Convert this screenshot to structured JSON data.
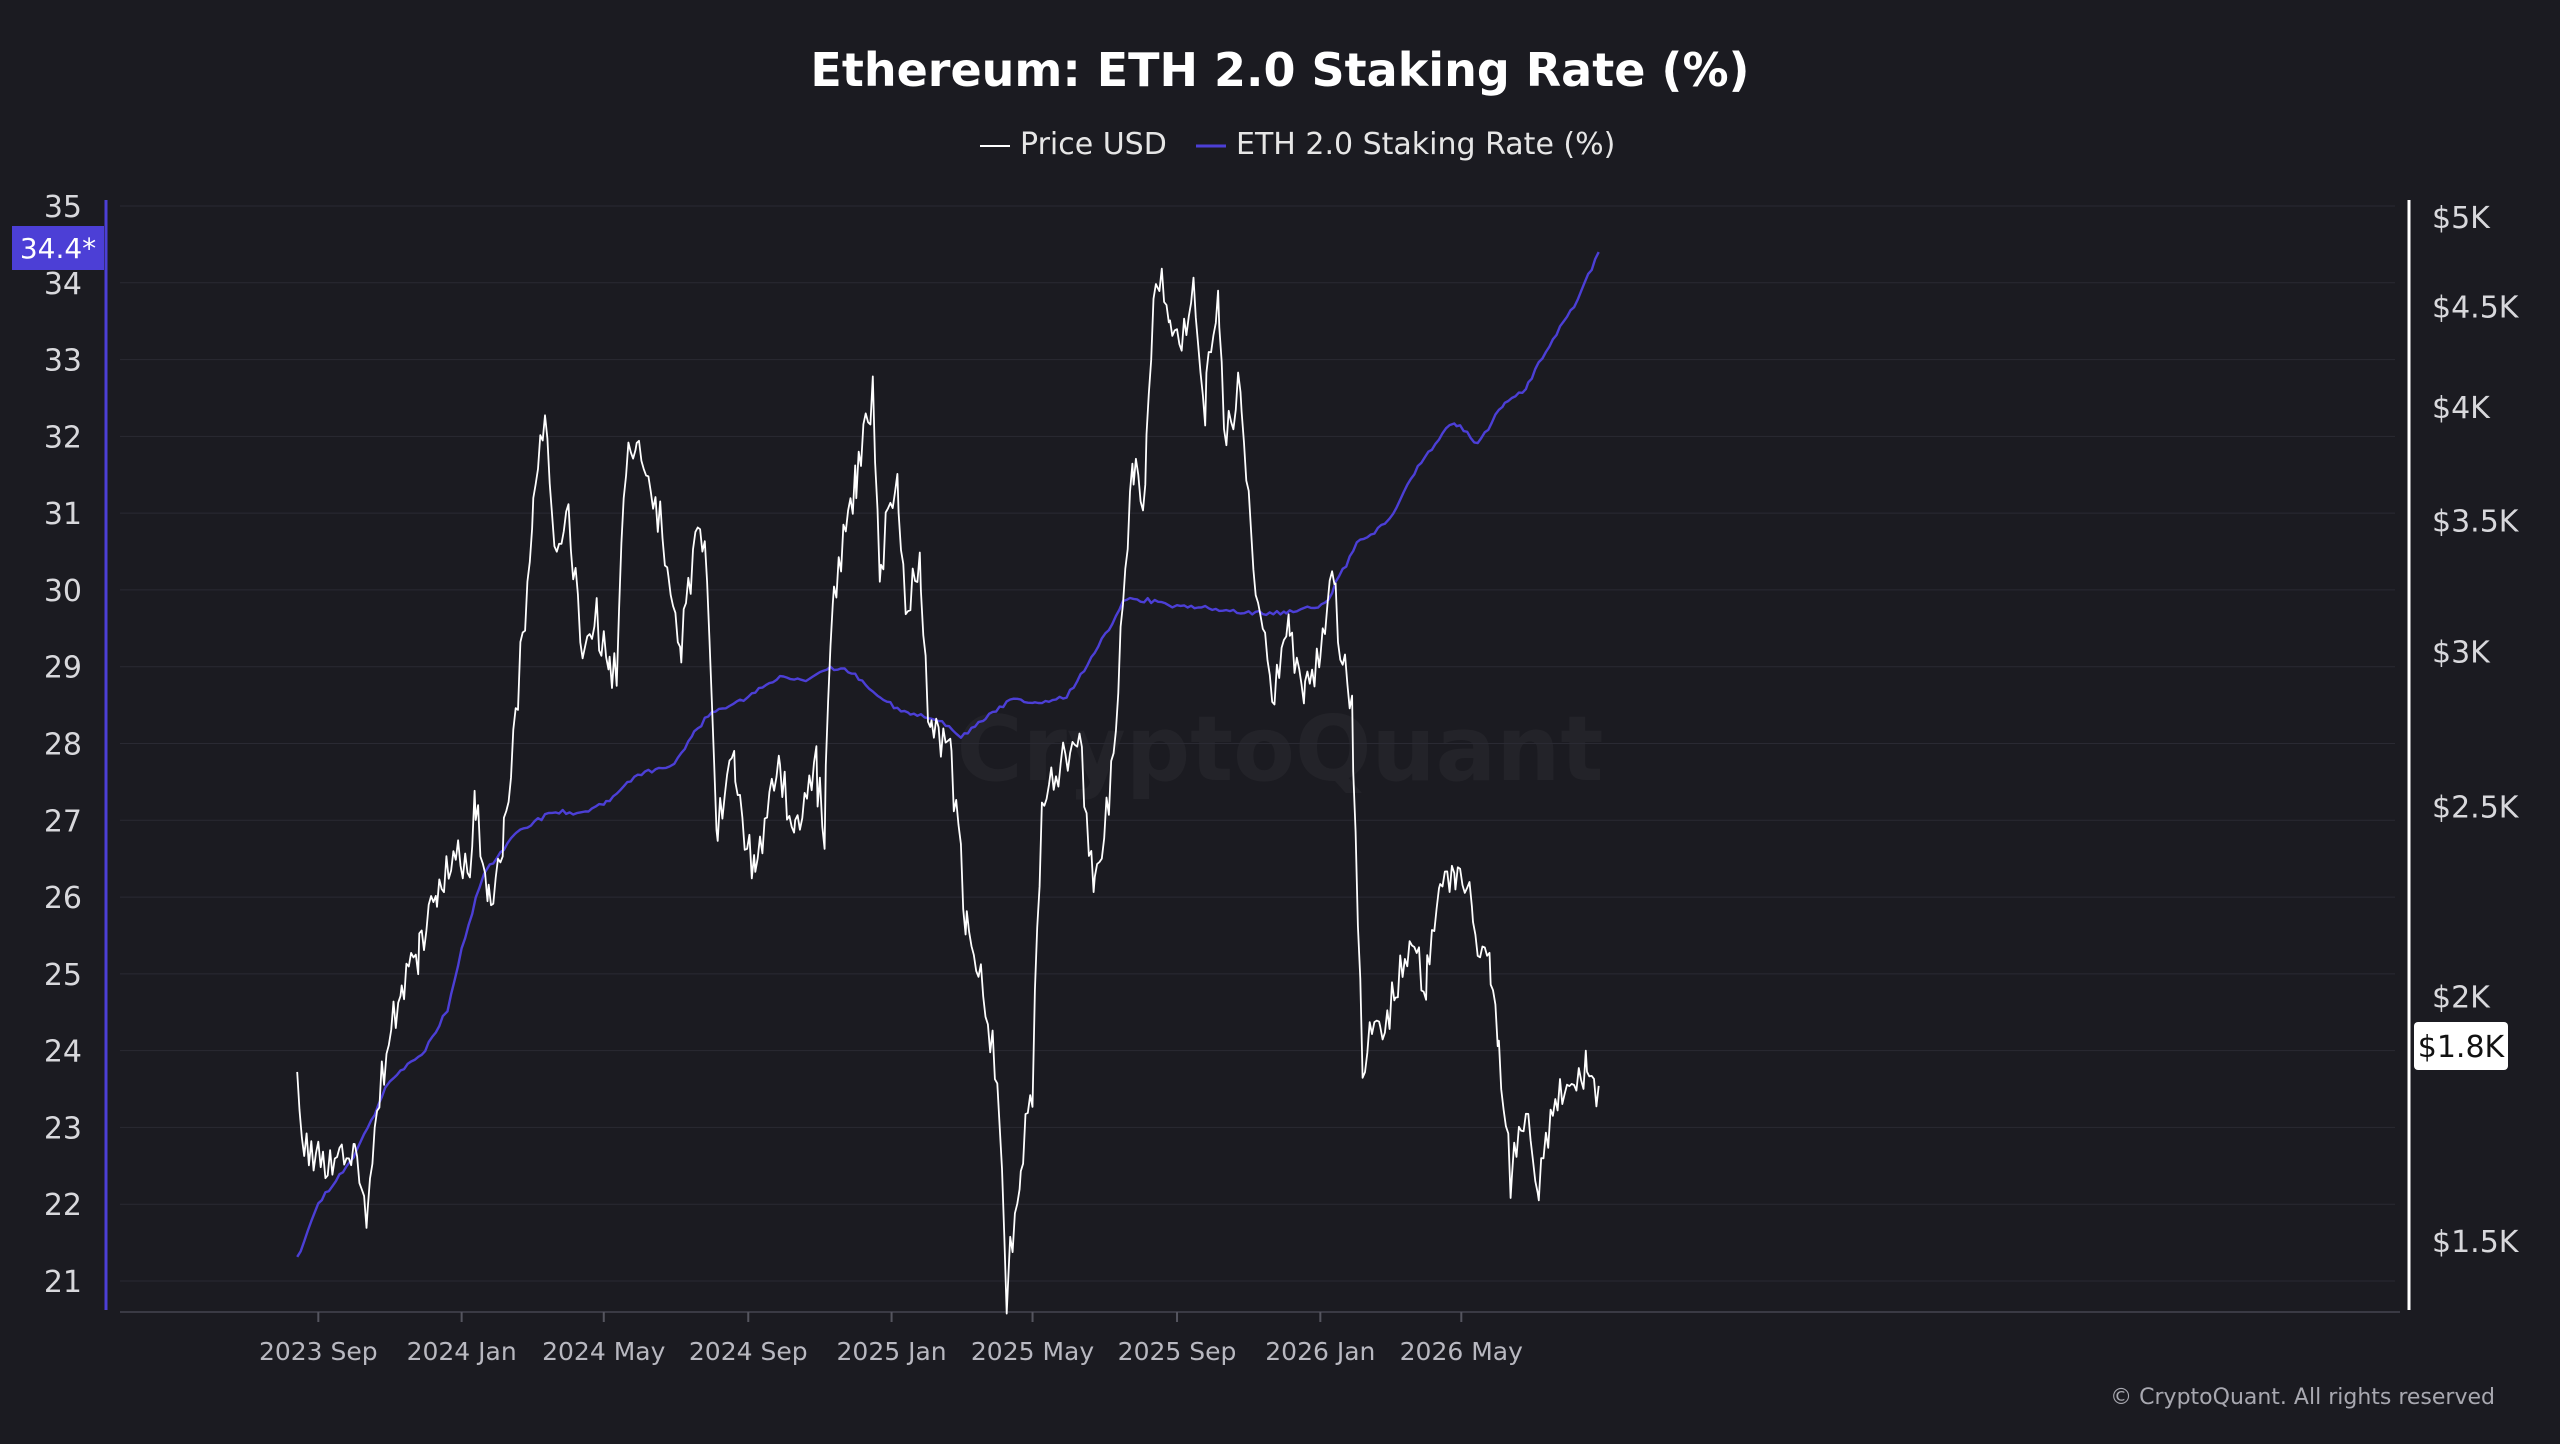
{
  "chart_data": {
    "type": "line",
    "title": "Ethereum: ETH 2.0 Staking Rate (%)",
    "legend": {
      "position": "top-center",
      "entries": [
        {
          "name": "Price USD",
          "color": "#ffffff"
        },
        {
          "name": "ETH 2.0 Staking Rate (%)",
          "color": "#4c3fd6"
        }
      ]
    },
    "watermark": "CryptoQuant",
    "copyright": "© CryptoQuant. All rights reserved",
    "x_ticks": [
      "2023 Sep",
      "2024 Jan",
      "2024 May",
      "2024 Sep",
      "2025 Jan",
      "2025 May",
      "2025 Sep",
      "2026 Jan",
      "2026 May"
    ],
    "x_range": [
      "2023-08-13",
      "2026-08-26"
    ],
    "grid": true,
    "y_left": {
      "label": "",
      "range": [
        21,
        35
      ],
      "ticks": [
        "35",
        "34",
        "33",
        "32",
        "31",
        "30",
        "29",
        "28",
        "27",
        "26",
        "25",
        "24",
        "23",
        "22",
        "21"
      ],
      "current_badge": "34.4*"
    },
    "y_right": {
      "label": "",
      "scale": "log",
      "range": [
        1400,
        5000
      ],
      "ticks": [
        {
          "value": 5000,
          "label": "$5K"
        },
        {
          "value": 4500,
          "label": "$4.5K"
        },
        {
          "value": 4000,
          "label": "$4K"
        },
        {
          "value": 3500,
          "label": "$3.5K"
        },
        {
          "value": 3000,
          "label": "$3K"
        },
        {
          "value": 2500,
          "label": "$2.5K"
        },
        {
          "value": 2000,
          "label": "$2K"
        },
        {
          "value": 1500,
          "label": "$1.5K"
        }
      ],
      "current_badge": "$1.8K"
    },
    "series": [
      {
        "name": "ETH 2.0 Staking Rate (%)",
        "axis": "left",
        "color": "#4c3fd6",
        "points": [
          [
            "2023-08-14",
            21.3
          ],
          [
            "2023-09-01",
            22.0
          ],
          [
            "2023-10-01",
            22.6
          ],
          [
            "2023-11-01",
            23.6
          ],
          [
            "2023-12-01",
            24.0
          ],
          [
            "2023-12-20",
            24.5
          ],
          [
            "2024-01-01",
            25.3
          ],
          [
            "2024-01-20",
            26.3
          ],
          [
            "2024-02-15",
            26.8
          ],
          [
            "2024-03-15",
            27.1
          ],
          [
            "2024-04-15",
            27.1
          ],
          [
            "2024-05-01",
            27.2
          ],
          [
            "2024-05-30",
            27.6
          ],
          [
            "2024-06-30",
            27.7
          ],
          [
            "2024-07-15",
            28.1
          ],
          [
            "2024-08-01",
            28.4
          ],
          [
            "2024-09-01",
            28.6
          ],
          [
            "2024-10-01",
            28.9
          ],
          [
            "2024-10-20",
            28.8
          ],
          [
            "2024-11-10",
            29.0
          ],
          [
            "2024-12-01",
            28.9
          ],
          [
            "2024-12-20",
            28.6
          ],
          [
            "2025-01-15",
            28.4
          ],
          [
            "2025-02-10",
            28.3
          ],
          [
            "2025-03-01",
            28.1
          ],
          [
            "2025-03-20",
            28.3
          ],
          [
            "2025-04-15",
            28.6
          ],
          [
            "2025-05-01",
            28.5
          ],
          [
            "2025-05-30",
            28.6
          ],
          [
            "2025-06-20",
            29.1
          ],
          [
            "2025-07-20",
            29.9
          ],
          [
            "2025-08-10",
            29.85
          ],
          [
            "2025-09-01",
            29.8
          ],
          [
            "2025-10-01",
            29.75
          ],
          [
            "2025-11-01",
            29.7
          ],
          [
            "2025-12-01",
            29.7
          ],
          [
            "2026-01-05",
            29.8
          ],
          [
            "2026-02-01",
            30.6
          ],
          [
            "2026-03-01",
            30.9
          ],
          [
            "2026-03-25",
            31.6
          ],
          [
            "2026-04-25",
            32.2
          ],
          [
            "2026-05-15",
            31.9
          ],
          [
            "2026-06-05",
            32.4
          ],
          [
            "2026-06-25",
            32.6
          ],
          [
            "2026-07-15",
            33.2
          ],
          [
            "2026-08-05",
            33.7
          ],
          [
            "2026-08-26",
            34.4
          ]
        ]
      },
      {
        "name": "Price USD",
        "axis": "right",
        "color": "#ffffff",
        "points": [
          [
            "2023-08-14",
            1850
          ],
          [
            "2023-08-18",
            1680
          ],
          [
            "2023-09-01",
            1645
          ],
          [
            "2023-09-15",
            1625
          ],
          [
            "2023-10-01",
            1670
          ],
          [
            "2023-10-12",
            1560
          ],
          [
            "2023-10-25",
            1800
          ],
          [
            "2023-11-10",
            2050
          ],
          [
            "2023-11-25",
            2080
          ],
          [
            "2023-12-10",
            2250
          ],
          [
            "2023-12-25",
            2350
          ],
          [
            "2024-01-08",
            2330
          ],
          [
            "2024-01-12",
            2600
          ],
          [
            "2024-01-23",
            2220
          ],
          [
            "2024-02-05",
            2320
          ],
          [
            "2024-02-20",
            2950
          ],
          [
            "2024-03-01",
            3450
          ],
          [
            "2024-03-12",
            4050
          ],
          [
            "2024-03-20",
            3300
          ],
          [
            "2024-04-01",
            3550
          ],
          [
            "2024-04-13",
            2950
          ],
          [
            "2024-04-25",
            3150
          ],
          [
            "2024-05-05",
            2950
          ],
          [
            "2024-05-12",
            2900
          ],
          [
            "2024-05-20",
            3750
          ],
          [
            "2024-05-28",
            3850
          ],
          [
            "2024-06-10",
            3600
          ],
          [
            "2024-06-24",
            3350
          ],
          [
            "2024-07-05",
            2950
          ],
          [
            "2024-07-20",
            3500
          ],
          [
            "2024-07-28",
            3250
          ],
          [
            "2024-08-05",
            2450
          ],
          [
            "2024-08-20",
            2650
          ],
          [
            "2024-09-06",
            2300
          ],
          [
            "2024-09-27",
            2650
          ],
          [
            "2024-10-10",
            2400
          ],
          [
            "2024-10-29",
            2650
          ],
          [
            "2024-11-05",
            2400
          ],
          [
            "2024-11-12",
            3200
          ],
          [
            "2024-12-01",
            3650
          ],
          [
            "2024-12-16",
            4050
          ],
          [
            "2024-12-22",
            3300
          ],
          [
            "2025-01-06",
            3650
          ],
          [
            "2025-01-13",
            3150
          ],
          [
            "2025-01-25",
            3300
          ],
          [
            "2025-02-03",
            2750
          ],
          [
            "2025-02-20",
            2700
          ],
          [
            "2025-03-05",
            2200
          ],
          [
            "2025-03-20",
            2000
          ],
          [
            "2025-04-01",
            1800
          ],
          [
            "2025-04-09",
            1400
          ],
          [
            "2025-04-20",
            1600
          ],
          [
            "2025-05-01",
            1800
          ],
          [
            "2025-05-09",
            2500
          ],
          [
            "2025-05-25",
            2600
          ],
          [
            "2025-06-10",
            2700
          ],
          [
            "2025-06-22",
            2250
          ],
          [
            "2025-07-05",
            2500
          ],
          [
            "2025-07-15",
            3000
          ],
          [
            "2025-07-25",
            3750
          ],
          [
            "2025-08-05",
            3550
          ],
          [
            "2025-08-14",
            4700
          ],
          [
            "2025-08-25",
            4450
          ],
          [
            "2025-09-05",
            4300
          ],
          [
            "2025-09-15",
            4600
          ],
          [
            "2025-09-25",
            4050
          ],
          [
            "2025-10-06",
            4550
          ],
          [
            "2025-10-11",
            3850
          ],
          [
            "2025-10-25",
            4100
          ],
          [
            "2025-11-05",
            3350
          ],
          [
            "2025-11-21",
            2800
          ],
          [
            "2025-12-05",
            3150
          ],
          [
            "2025-12-18",
            2850
          ],
          [
            "2025-12-31",
            2950
          ],
          [
            "2026-01-13",
            3300
          ],
          [
            "2026-01-20",
            2950
          ],
          [
            "2026-01-28",
            2800
          ],
          [
            "2026-02-06",
            1850
          ],
          [
            "2026-02-20",
            1950
          ],
          [
            "2026-03-05",
            2000
          ],
          [
            "2026-03-20",
            2150
          ],
          [
            "2026-04-01",
            2000
          ],
          [
            "2026-04-12",
            2250
          ],
          [
            "2026-04-25",
            2350
          ],
          [
            "2026-05-10",
            2200
          ],
          [
            "2026-05-25",
            2050
          ],
          [
            "2026-06-01",
            1900
          ],
          [
            "2026-06-12",
            1600
          ],
          [
            "2026-06-25",
            1720
          ],
          [
            "2026-07-05",
            1580
          ],
          [
            "2026-07-20",
            1750
          ],
          [
            "2026-08-01",
            1800
          ],
          [
            "2026-08-15",
            1820
          ],
          [
            "2026-08-26",
            1800
          ]
        ]
      }
    ]
  }
}
